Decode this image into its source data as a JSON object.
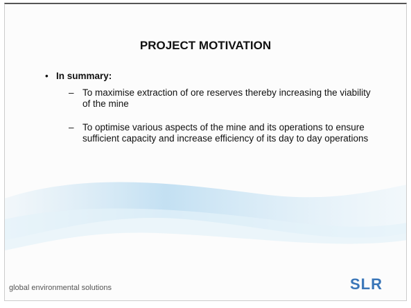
{
  "slide": {
    "title": "PROJECT MOTIVATION",
    "bullet": "In summary:",
    "items": [
      "To maximise extraction of ore reserves thereby increasing the viability of the mine",
      "To optimise various aspects of the mine and its operations to ensure sufficient capacity and increase efficiency of its day to day operations"
    ],
    "footer": "global environmental solutions",
    "logo": "SLR"
  }
}
